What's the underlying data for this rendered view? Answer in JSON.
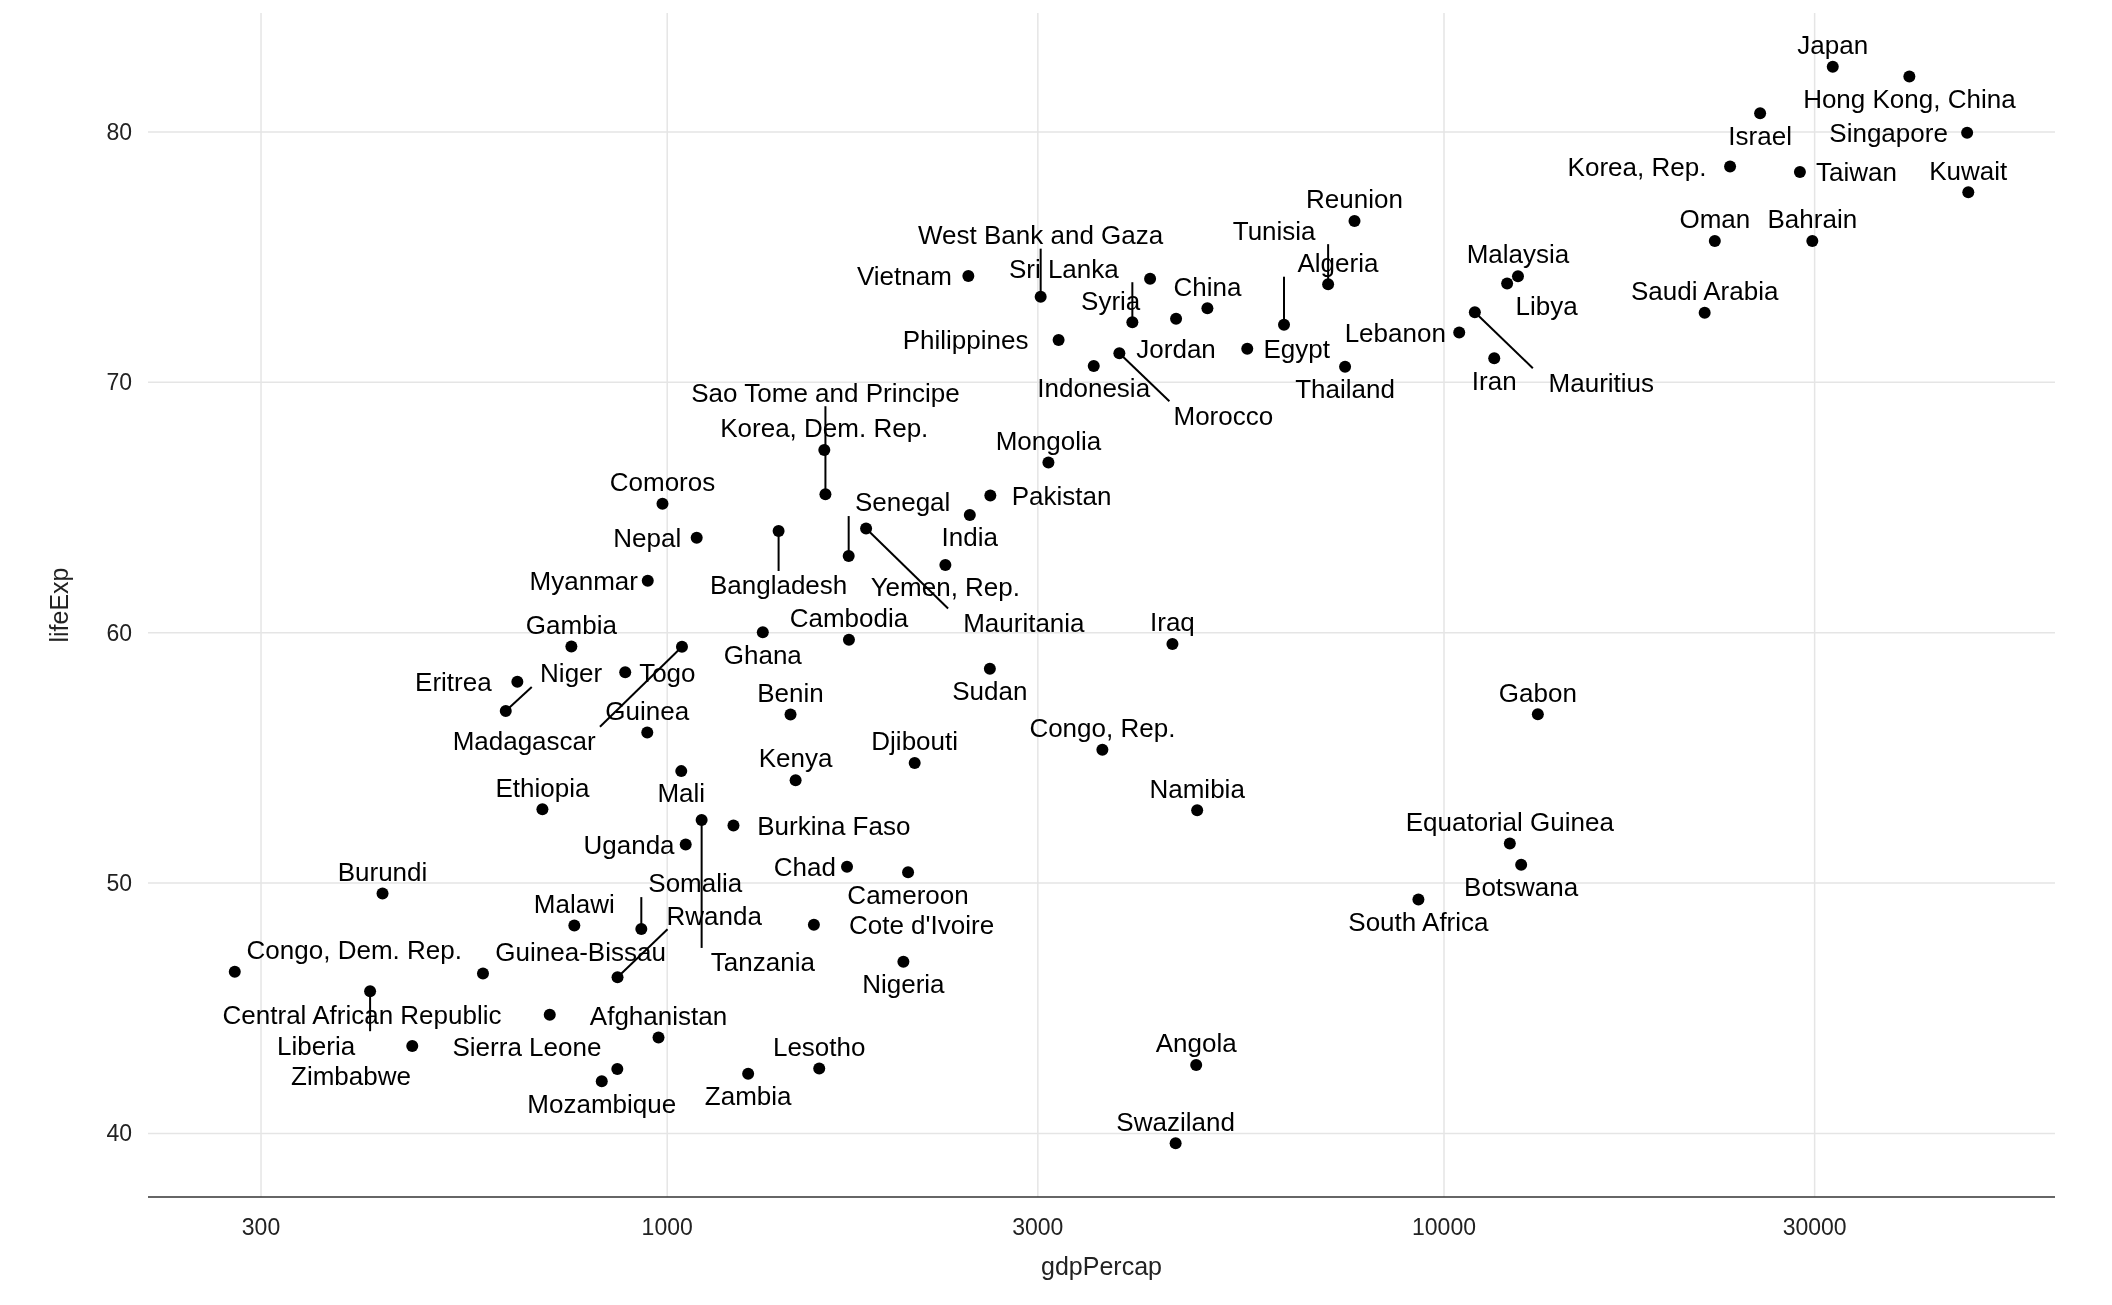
{
  "chart_data": {
    "type": "scatter",
    "xlabel": "gdpPercap",
    "ylabel": "lifeExp",
    "log": "x",
    "xlim": [
      214.6,
      61170
    ],
    "ylim": [
      37.46,
      84.75
    ],
    "xticks": [
      300,
      1000,
      3000,
      10000,
      30000
    ],
    "yticks": [
      40,
      50,
      60,
      70,
      80
    ],
    "grid": true,
    "marker": "circle",
    "series": [
      {
        "color": "#000000",
        "x": [
          974.58,
          29796.05,
          1391.25,
          1713.78,
          4959.12,
          39724.98,
          2452.21,
          3540.65,
          11605.71,
          4471.06,
          25523.28,
          31656.07,
          4519.46,
          1593.07,
          23348.14,
          47306.99,
          10461.06,
          12451.66,
          3095.77,
          944,
          1091.36,
          22316.19,
          2605.95,
          3190.48,
          21654.83,
          47143.18,
          3970.1,
          4184.55,
          28718.28,
          7458.4,
          2441.58,
          3025.35,
          2280.77,
          6223.37,
          4797.23,
          1441.29,
          12569.85,
          1217.03,
          430.07,
          2042.1,
          706.02,
          1704.06,
          986.15,
          277.55,
          3632.56,
          1544.75,
          2082.48,
          5581.18,
          12154.09,
          641.37,
          690.81,
          13206.48,
          752.75,
          1327.61,
          942.65,
          579.23,
          1463.25,
          1569.33,
          414.51,
          12057.5,
          1044.77,
          759.35,
          1042.58,
          1803.15,
          10956.99,
          3820.18,
          823.69,
          4811.06,
          619.68,
          2013.98,
          7670.12,
          863.09,
          1598.44,
          1712.47,
          862.54,
          926.14,
          9269.66,
          2602.4,
          4513.48,
          1107.48,
          882.97,
          7092.92,
          1056.38,
          1271.21,
          469.71
        ],
        "values": [
          43.83,
          75.64,
          64.06,
          59.72,
          72.96,
          82.21,
          64.7,
          70.65,
          70.96,
          59.55,
          80.75,
          82.6,
          72.54,
          67.3,
          78.62,
          77.59,
          71.99,
          74.24,
          66.8,
          62.07,
          63.79,
          75.64,
          65.48,
          71.69,
          72.78,
          79.97,
          72.4,
          74.14,
          78.4,
          70.62,
          74.25,
          73.42,
          62.7,
          72.3,
          42.73,
          56.73,
          50.73,
          52.3,
          49.58,
          50.43,
          44.74,
          50.65,
          65.15,
          46.46,
          55.32,
          48.33,
          54.79,
          71.34,
          51.58,
          58.04,
          52.95,
          56.74,
          59.45,
          60.02,
          56.01,
          46.39,
          54.11,
          42.59,
          45.68,
          73.95,
          59.44,
          48.3,
          54.47,
          64.16,
          72.8,
          71.16,
          42.08,
          52.91,
          56.87,
          46.86,
          76.44,
          46.24,
          65.53,
          63.06,
          42.57,
          48.16,
          49.34,
          58.56,
          39.61,
          52.52,
          58.42,
          73.92,
          51.54,
          42.38,
          43.49
        ]
      }
    ],
    "annotations": [
      {
        "text": "Afghanistan",
        "x": 974.58,
        "y": 43.83
      },
      {
        "text": "Bahrain",
        "x": 29796.05,
        "y": 75.64
      },
      {
        "text": "Bangladesh",
        "x": 1391.25,
        "y": 64.06
      },
      {
        "text": "Cambodia",
        "x": 1713.78,
        "y": 59.72
      },
      {
        "text": "China",
        "x": 4959.12,
        "y": 72.96
      },
      {
        "text": "Hong Kong, China",
        "x": 39724.98,
        "y": 82.21
      },
      {
        "text": "India",
        "x": 2452.21,
        "y": 64.7
      },
      {
        "text": "Indonesia",
        "x": 3540.65,
        "y": 70.65
      },
      {
        "text": "Iran",
        "x": 11605.71,
        "y": 70.96
      },
      {
        "text": "Iraq",
        "x": 4471.06,
        "y": 59.55
      },
      {
        "text": "Israel",
        "x": 25523.28,
        "y": 80.75
      },
      {
        "text": "Japan",
        "x": 31656.07,
        "y": 82.6
      },
      {
        "text": "Jordan",
        "x": 4519.46,
        "y": 72.54
      },
      {
        "text": "Korea, Dem. Rep.",
        "x": 1593.07,
        "y": 67.3
      },
      {
        "text": "Korea, Rep.",
        "x": 23348.14,
        "y": 78.62
      },
      {
        "text": "Kuwait",
        "x": 47306.99,
        "y": 77.59
      },
      {
        "text": "Lebanon",
        "x": 10461.06,
        "y": 71.99
      },
      {
        "text": "Malaysia",
        "x": 12451.66,
        "y": 74.24
      },
      {
        "text": "Mongolia",
        "x": 3095.77,
        "y": 66.8
      },
      {
        "text": "Myanmar",
        "x": 944,
        "y": 62.07
      },
      {
        "text": "Nepal",
        "x": 1091.36,
        "y": 63.79
      },
      {
        "text": "Oman",
        "x": 22316.19,
        "y": 75.64
      },
      {
        "text": "Pakistan",
        "x": 2605.95,
        "y": 65.48
      },
      {
        "text": "Philippines",
        "x": 3190.48,
        "y": 71.69
      },
      {
        "text": "Saudi Arabia",
        "x": 21654.83,
        "y": 72.78
      },
      {
        "text": "Singapore",
        "x": 47143.18,
        "y": 79.97
      },
      {
        "text": "Sri Lanka",
        "x": 3970.1,
        "y": 72.4
      },
      {
        "text": "Syria",
        "x": 4184.55,
        "y": 74.14
      },
      {
        "text": "Taiwan",
        "x": 28718.28,
        "y": 78.4
      },
      {
        "text": "Thailand",
        "x": 7458.4,
        "y": 70.62
      },
      {
        "text": "Vietnam",
        "x": 2441.58,
        "y": 74.25
      },
      {
        "text": "West Bank and Gaza",
        "x": 3025.35,
        "y": 73.42
      },
      {
        "text": "Yemen, Rep.",
        "x": 2280.77,
        "y": 62.7
      },
      {
        "text": "Algeria",
        "x": 6223.37,
        "y": 72.3
      },
      {
        "text": "Angola",
        "x": 4797.23,
        "y": 42.73
      },
      {
        "text": "Benin",
        "x": 1441.29,
        "y": 56.73
      },
      {
        "text": "Botswana",
        "x": 12569.85,
        "y": 50.73
      },
      {
        "text": "Burkina Faso",
        "x": 1217.03,
        "y": 52.3
      },
      {
        "text": "Burundi",
        "x": 430.07,
        "y": 49.58
      },
      {
        "text": "Cameroon",
        "x": 2042.1,
        "y": 50.43
      },
      {
        "text": "Central African Republic",
        "x": 706.02,
        "y": 44.74
      },
      {
        "text": "Chad",
        "x": 1704.06,
        "y": 50.65
      },
      {
        "text": "Comoros",
        "x": 986.15,
        "y": 65.15
      },
      {
        "text": "Congo, Dem. Rep.",
        "x": 277.55,
        "y": 46.46
      },
      {
        "text": "Congo, Rep.",
        "x": 3632.56,
        "y": 55.32
      },
      {
        "text": "Cote d'Ivoire",
        "x": 1544.75,
        "y": 48.33
      },
      {
        "text": "Djibouti",
        "x": 2082.48,
        "y": 54.79
      },
      {
        "text": "Egypt",
        "x": 5581.18,
        "y": 71.34
      },
      {
        "text": "Equatorial Guinea",
        "x": 12154.09,
        "y": 51.58
      },
      {
        "text": "Eritrea",
        "x": 641.37,
        "y": 58.04
      },
      {
        "text": "Ethiopia",
        "x": 690.81,
        "y": 52.95
      },
      {
        "text": "Gabon",
        "x": 13206.48,
        "y": 56.74
      },
      {
        "text": "Gambia",
        "x": 752.75,
        "y": 59.45
      },
      {
        "text": "Ghana",
        "x": 1327.61,
        "y": 60.02
      },
      {
        "text": "Guinea",
        "x": 942.65,
        "y": 56.01
      },
      {
        "text": "Guinea-Bissau",
        "x": 579.23,
        "y": 46.39
      },
      {
        "text": "Kenya",
        "x": 1463.25,
        "y": 54.11
      },
      {
        "text": "Lesotho",
        "x": 1569.33,
        "y": 42.59
      },
      {
        "text": "Liberia",
        "x": 414.51,
        "y": 45.68
      },
      {
        "text": "Libya",
        "x": 12057.5,
        "y": 73.95
      },
      {
        "text": "Madagascar",
        "x": 1044.77,
        "y": 59.44
      },
      {
        "text": "Malawi",
        "x": 759.35,
        "y": 48.3
      },
      {
        "text": "Mali",
        "x": 1042.58,
        "y": 54.47
      },
      {
        "text": "Mauritania",
        "x": 1803.15,
        "y": 64.16
      },
      {
        "text": "Mauritius",
        "x": 10956.99,
        "y": 72.8
      },
      {
        "text": "Morocco",
        "x": 3820.18,
        "y": 71.16
      },
      {
        "text": "Mozambique",
        "x": 823.69,
        "y": 42.08
      },
      {
        "text": "Namibia",
        "x": 4811.06,
        "y": 52.91
      },
      {
        "text": "Niger",
        "x": 619.68,
        "y": 56.87
      },
      {
        "text": "Nigeria",
        "x": 2013.98,
        "y": 46.86
      },
      {
        "text": "Reunion",
        "x": 7670.12,
        "y": 76.44
      },
      {
        "text": "Rwanda",
        "x": 863.09,
        "y": 46.24
      },
      {
        "text": "Sao Tome and Principe",
        "x": 1598.44,
        "y": 65.53
      },
      {
        "text": "Senegal",
        "x": 1712.47,
        "y": 63.06
      },
      {
        "text": "Sierra Leone",
        "x": 862.54,
        "y": 42.57
      },
      {
        "text": "Somalia",
        "x": 926.14,
        "y": 48.16
      },
      {
        "text": "South Africa",
        "x": 9269.66,
        "y": 49.34
      },
      {
        "text": "Sudan",
        "x": 2602.4,
        "y": 58.56
      },
      {
        "text": "Swaziland",
        "x": 4513.48,
        "y": 39.61
      },
      {
        "text": "Tanzania",
        "x": 1107.48,
        "y": 52.52
      },
      {
        "text": "Togo",
        "x": 882.97,
        "y": 58.42
      },
      {
        "text": "Tunisia",
        "x": 7092.92,
        "y": 73.92
      },
      {
        "text": "Uganda",
        "x": 1056.38,
        "y": 51.54
      },
      {
        "text": "Zambia",
        "x": 1271.21,
        "y": 42.38
      },
      {
        "text": "Zimbabwe",
        "x": 469.71,
        "y": 43.49
      }
    ]
  }
}
